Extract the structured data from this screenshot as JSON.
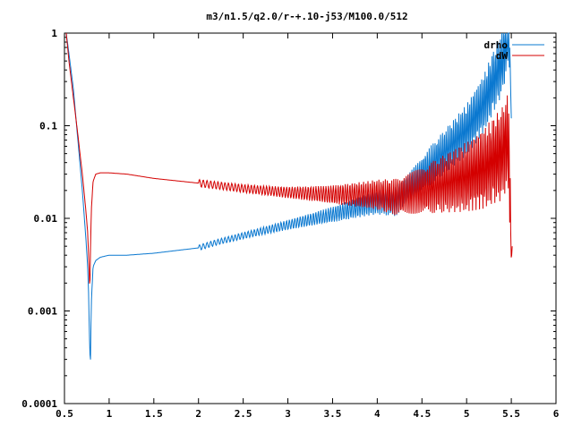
{
  "chart_data": {
    "type": "line",
    "title": "m3/n1.5/q2.0/r-+.10-j53/M100.0/512",
    "xlabel": "",
    "ylabel": "",
    "xlim": [
      0.5,
      6
    ],
    "ylim": [
      0.0001,
      1
    ],
    "y_scale": "log",
    "grid": false,
    "legend_position": "top-right",
    "x_ticks": [
      "0.5",
      "1",
      "1.5",
      "2",
      "2.5",
      "3",
      "3.5",
      "4",
      "4.5",
      "5",
      "5.5",
      "6"
    ],
    "y_ticks": [
      "1",
      "0.1",
      "0.01",
      "0.001",
      "0.0001"
    ],
    "series": [
      {
        "name": "drho",
        "color": "#0a78d0",
        "x": [
          0.52,
          0.55,
          0.6,
          0.65,
          0.7,
          0.74,
          0.76,
          0.77,
          0.78,
          0.79,
          0.8,
          0.82,
          0.85,
          0.9,
          1.0,
          1.2,
          1.5,
          2.0,
          2.2,
          2.5,
          3.0,
          3.5,
          4.0,
          4.2,
          4.5,
          5.0,
          5.2,
          5.4,
          5.45,
          5.48,
          5.5
        ],
        "y": [
          1.0,
          0.6,
          0.25,
          0.07,
          0.02,
          0.006,
          0.003,
          0.0015,
          0.0005,
          0.00025,
          0.0012,
          0.003,
          0.0035,
          0.0038,
          0.004,
          0.004,
          0.0042,
          0.0048,
          0.0055,
          0.0065,
          0.0085,
          0.011,
          0.015,
          0.015,
          0.03,
          0.09,
          0.18,
          0.5,
          0.9,
          1.0,
          0.12
        ]
      },
      {
        "name": "dW",
        "color": "#d40000",
        "x": [
          0.52,
          0.55,
          0.6,
          0.65,
          0.7,
          0.74,
          0.76,
          0.77,
          0.78,
          0.785,
          0.79,
          0.8,
          0.82,
          0.85,
          0.9,
          1.0,
          1.2,
          1.5,
          2.0,
          2.5,
          3.0,
          3.5,
          4.0,
          4.2,
          4.5,
          5.0,
          5.2,
          5.4,
          5.45,
          5.48,
          5.5,
          5.51
        ],
        "y": [
          1.0,
          0.5,
          0.2,
          0.08,
          0.03,
          0.012,
          0.007,
          0.004,
          0.002,
          0.0018,
          0.004,
          0.012,
          0.025,
          0.03,
          0.031,
          0.031,
          0.03,
          0.027,
          0.024,
          0.021,
          0.019,
          0.018,
          0.018,
          0.017,
          0.02,
          0.028,
          0.035,
          0.05,
          0.07,
          0.04,
          0.0033,
          0.005
        ]
      }
    ]
  }
}
